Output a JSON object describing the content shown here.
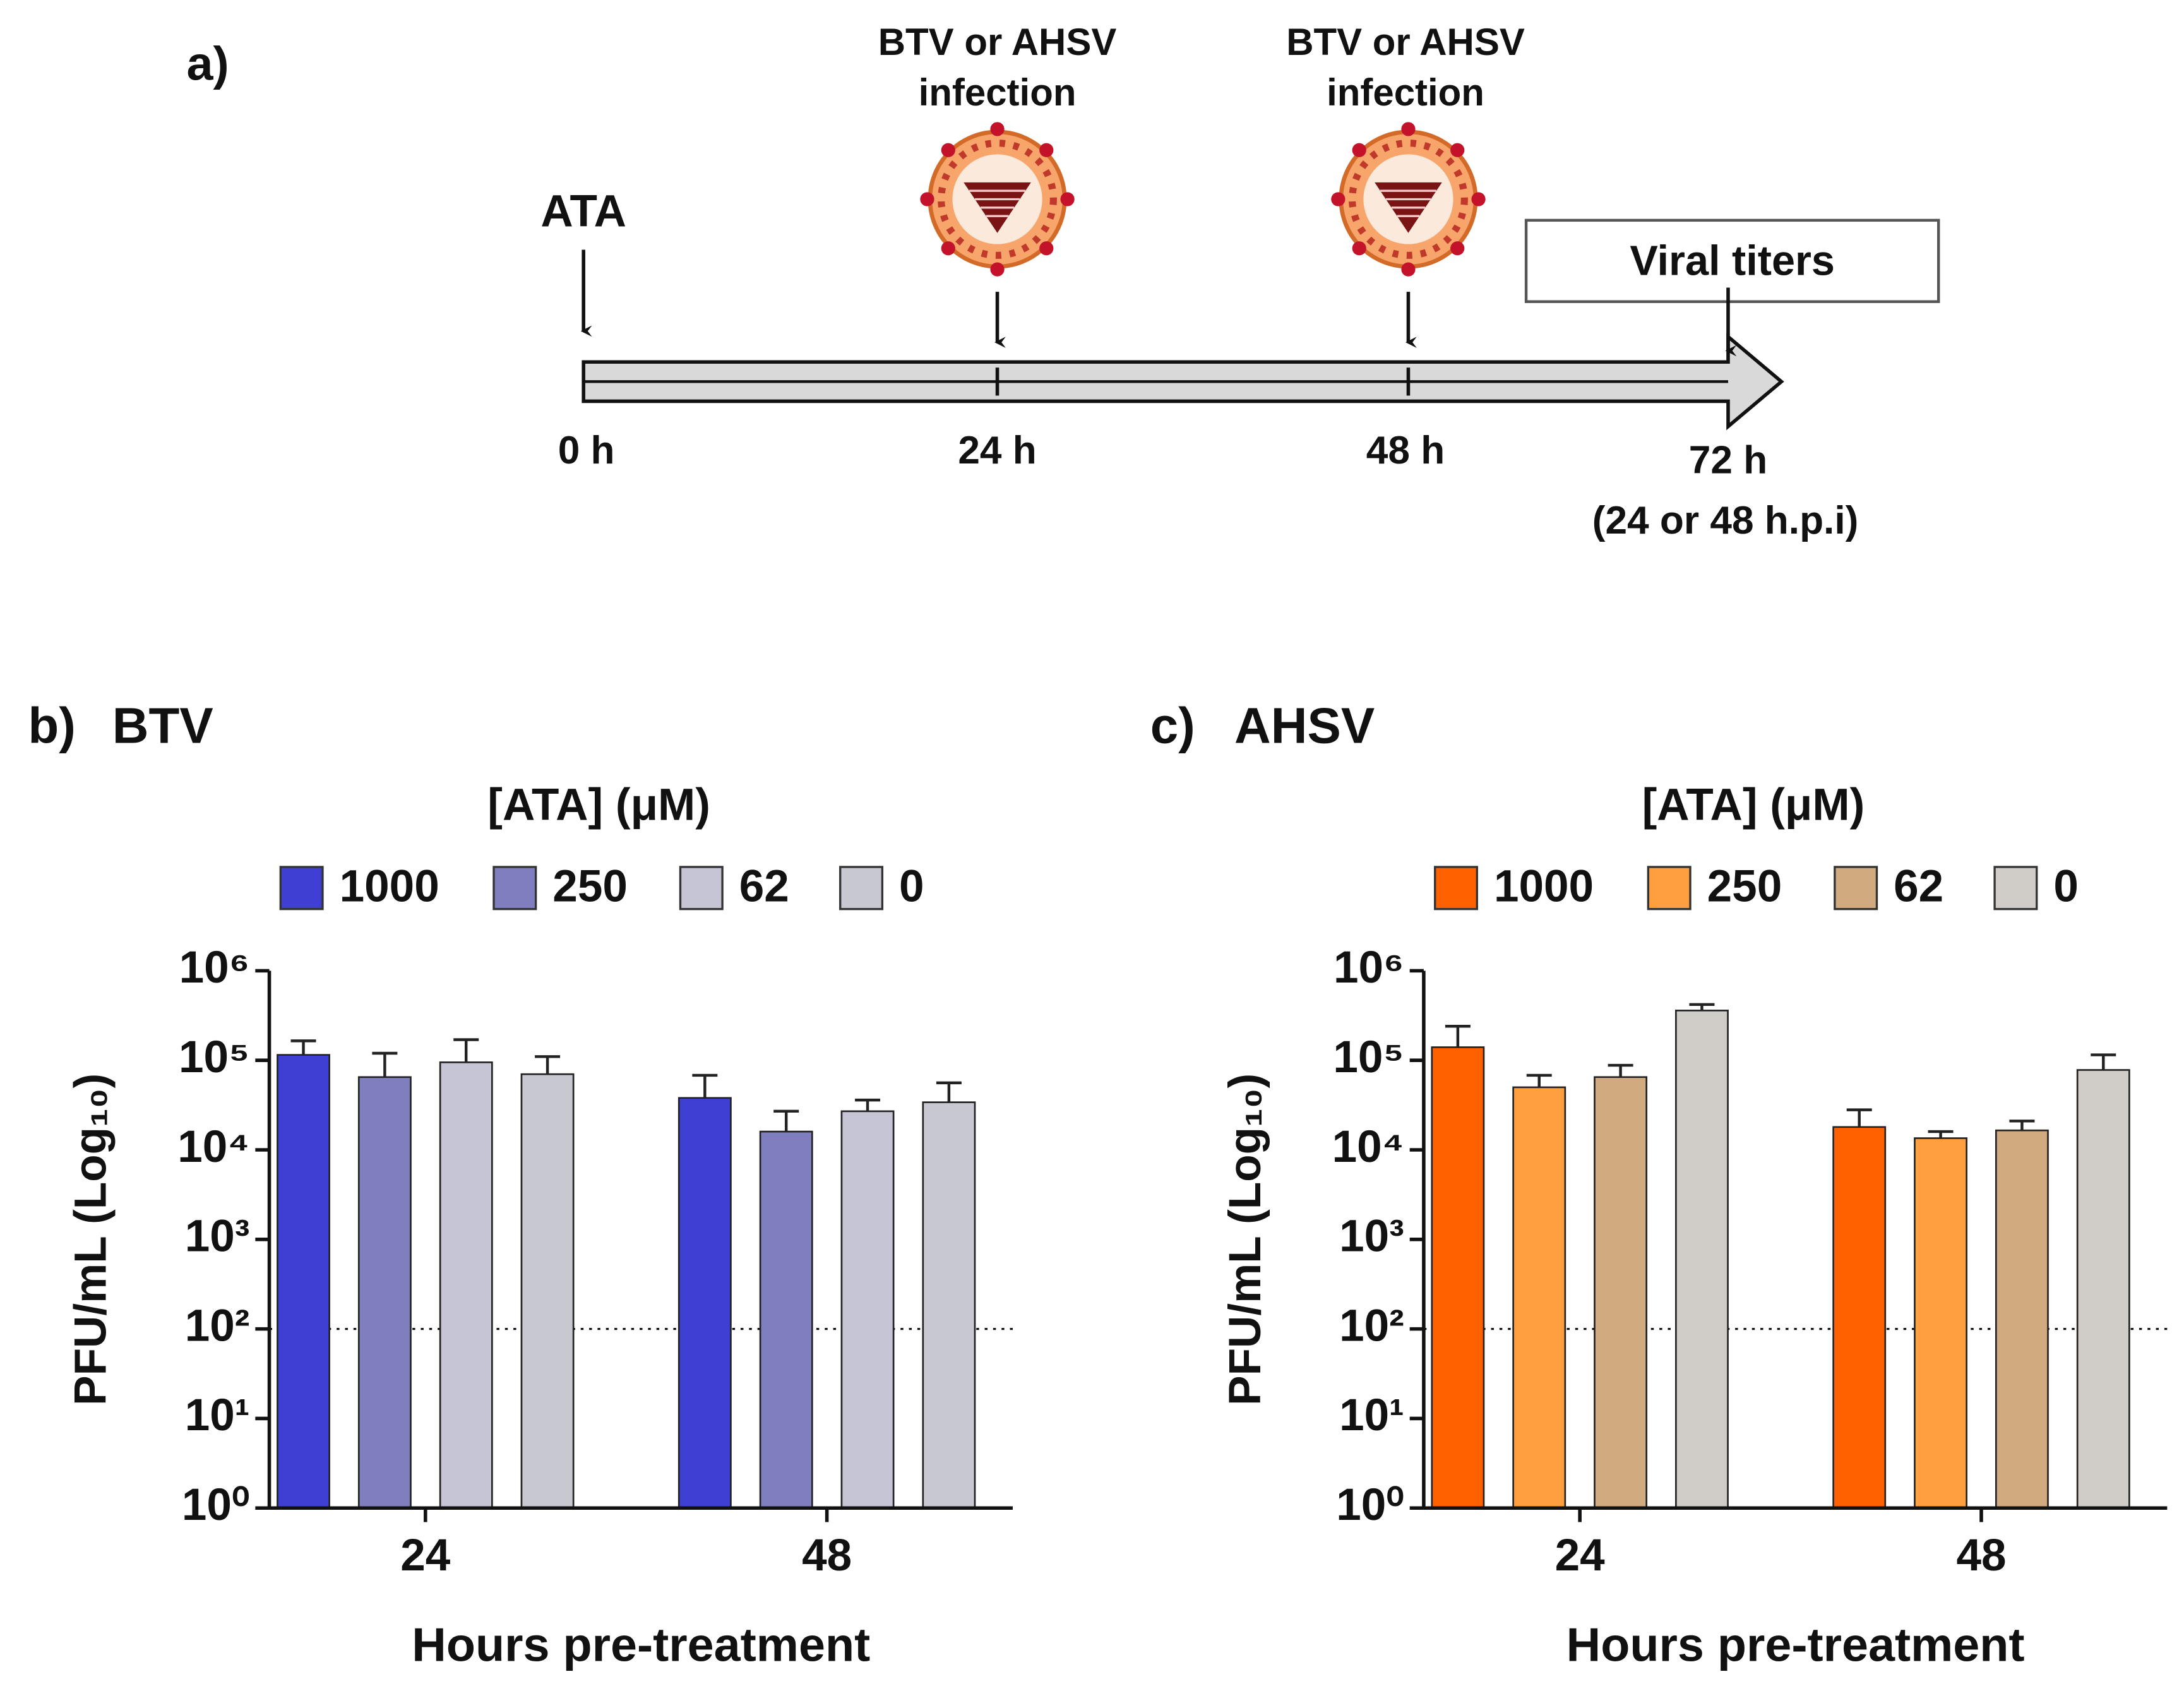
{
  "timeline": {
    "label": "a)",
    "start": "ATA",
    "events": [
      {
        "label": [
          "BTV or AHSV",
          "infection"
        ]
      },
      {
        "label": [
          "BTV or AHSV",
          "infection"
        ]
      }
    ],
    "times": [
      "0 h",
      "24 h",
      "48 h",
      "72 h"
    ],
    "end": "Viral titers",
    "end_note": "(24 or 48 h.p.i)"
  },
  "chart_data": [
    {
      "type": "bar",
      "panel": "b)",
      "title": "BTV",
      "legend_title": "[ATA] (μM)",
      "categories": [
        "24",
        "48"
      ],
      "xlabel": "Hours pre-treatment",
      "ylabel": "PFU/mL (Log₁₀)",
      "log": true,
      "ylim": [
        1,
        1000000
      ],
      "threshold": 100,
      "yticks": [
        {
          "value": 1,
          "label": "10⁰"
        },
        {
          "value": 10,
          "label": "10¹"
        },
        {
          "value": 100,
          "label": "10²"
        },
        {
          "value": 1000,
          "label": "10³"
        },
        {
          "value": 10000,
          "label": "10⁴"
        },
        {
          "value": 100000,
          "label": "10⁵"
        },
        {
          "value": 1000000,
          "label": "10⁶"
        }
      ],
      "series": [
        {
          "name": "1000",
          "color": "#3f3fd4",
          "values": [
            115000,
            38000
          ],
          "errors": [
            50000,
            30000
          ]
        },
        {
          "name": "250",
          "color": "#7f7fc0",
          "values": [
            65000,
            16000
          ],
          "errors": [
            55000,
            11000
          ]
        },
        {
          "name": "62",
          "color": "#c5c5d6",
          "values": [
            95000,
            27000
          ],
          "errors": [
            75000,
            9000
          ]
        },
        {
          "name": "0",
          "color": "#c8c8d0",
          "values": [
            70000,
            34000
          ],
          "errors": [
            40000,
            22000
          ]
        }
      ]
    },
    {
      "type": "bar",
      "panel": "c)",
      "title": "AHSV",
      "legend_title": "[ATA] (μM)",
      "categories": [
        "24",
        "48"
      ],
      "xlabel": "Hours pre-treatment",
      "ylabel": "PFU/mL (Log₁₀)",
      "log": true,
      "ylim": [
        1,
        1000000
      ],
      "threshold": 100,
      "yticks": [
        {
          "value": 1,
          "label": "10⁰"
        },
        {
          "value": 10,
          "label": "10¹"
        },
        {
          "value": 100,
          "label": "10²"
        },
        {
          "value": 1000,
          "label": "10³"
        },
        {
          "value": 10000,
          "label": "10⁴"
        },
        {
          "value": 100000,
          "label": "10⁵"
        },
        {
          "value": 1000000,
          "label": "10⁶"
        }
      ],
      "series": [
        {
          "name": "1000",
          "color": "#ff6000",
          "values": [
            140000,
            18000
          ],
          "errors": [
            100000,
            10000
          ]
        },
        {
          "name": "250",
          "color": "#ff9f40",
          "values": [
            50000,
            13500
          ],
          "errors": [
            18000,
            2500
          ]
        },
        {
          "name": "62",
          "color": "#d2aa80",
          "values": [
            65000,
            16500
          ],
          "errors": [
            23000,
            4500
          ]
        },
        {
          "name": "0",
          "color": "#d0ccc8",
          "values": [
            360000,
            78000
          ],
          "errors": [
            60000,
            37000
          ]
        }
      ]
    }
  ]
}
